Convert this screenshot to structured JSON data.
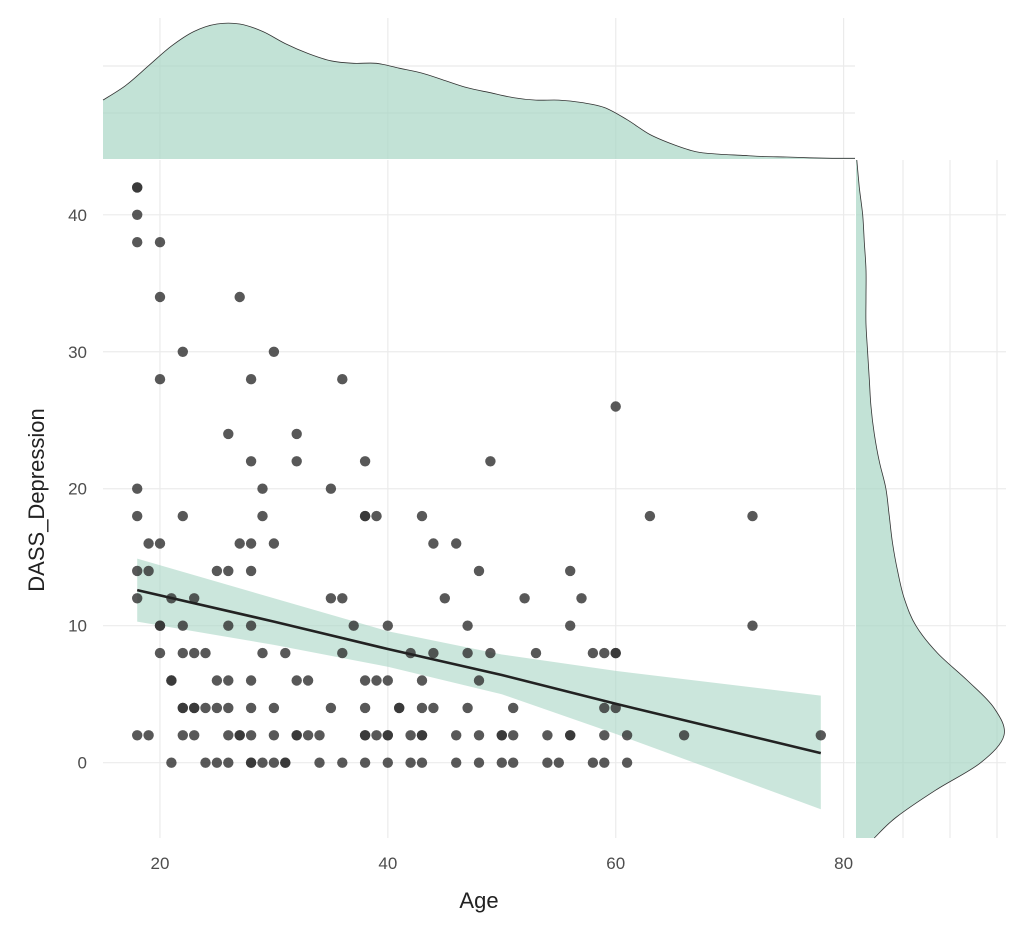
{
  "chart_data": {
    "type": "scatter",
    "xlabel": "Age",
    "ylabel": "DASS_Depression",
    "xlim": [
      15,
      81
    ],
    "ylim": [
      -5.5,
      44
    ],
    "x_ticks": [
      20,
      40,
      60,
      80
    ],
    "y_ticks": [
      0,
      10,
      20,
      30,
      40
    ],
    "grid": true,
    "colors": {
      "points": "#333333",
      "fit_line": "#222222",
      "band": "#a8d5c4",
      "density": "#a8d5c4",
      "density_line": "#333333"
    },
    "points": [
      [
        18,
        42
      ],
      [
        18,
        42
      ],
      [
        18,
        40
      ],
      [
        18,
        38
      ],
      [
        20,
        38
      ],
      [
        20,
        34
      ],
      [
        27,
        34
      ],
      [
        22,
        30
      ],
      [
        30,
        30
      ],
      [
        20,
        28
      ],
      [
        28,
        28
      ],
      [
        36,
        28
      ],
      [
        60,
        26
      ],
      [
        26,
        24
      ],
      [
        32,
        24
      ],
      [
        28,
        22
      ],
      [
        32,
        22
      ],
      [
        38,
        22
      ],
      [
        49,
        22
      ],
      [
        18,
        20
      ],
      [
        29,
        20
      ],
      [
        35,
        20
      ],
      [
        18,
        18
      ],
      [
        22,
        18
      ],
      [
        29,
        18
      ],
      [
        38,
        18
      ],
      [
        38,
        18
      ],
      [
        39,
        18
      ],
      [
        43,
        18
      ],
      [
        63,
        18
      ],
      [
        72,
        18
      ],
      [
        19,
        16
      ],
      [
        20,
        16
      ],
      [
        27,
        16
      ],
      [
        28,
        16
      ],
      [
        30,
        16
      ],
      [
        44,
        16
      ],
      [
        46,
        16
      ],
      [
        18,
        14
      ],
      [
        19,
        14
      ],
      [
        25,
        14
      ],
      [
        26,
        14
      ],
      [
        28,
        14
      ],
      [
        48,
        14
      ],
      [
        56,
        14
      ],
      [
        18,
        12
      ],
      [
        21,
        12
      ],
      [
        23,
        12
      ],
      [
        35,
        12
      ],
      [
        36,
        12
      ],
      [
        45,
        12
      ],
      [
        52,
        12
      ],
      [
        57,
        12
      ],
      [
        20,
        10
      ],
      [
        20,
        10
      ],
      [
        22,
        10
      ],
      [
        26,
        10
      ],
      [
        28,
        10
      ],
      [
        37,
        10
      ],
      [
        40,
        10
      ],
      [
        47,
        10
      ],
      [
        56,
        10
      ],
      [
        72,
        10
      ],
      [
        20,
        8
      ],
      [
        22,
        8
      ],
      [
        23,
        8
      ],
      [
        24,
        8
      ],
      [
        29,
        8
      ],
      [
        31,
        8
      ],
      [
        36,
        8
      ],
      [
        42,
        8
      ],
      [
        44,
        8
      ],
      [
        47,
        8
      ],
      [
        49,
        8
      ],
      [
        53,
        8
      ],
      [
        58,
        8
      ],
      [
        59,
        8
      ],
      [
        60,
        8
      ],
      [
        60,
        8
      ],
      [
        21,
        6
      ],
      [
        21,
        6
      ],
      [
        25,
        6
      ],
      [
        26,
        6
      ],
      [
        28,
        6
      ],
      [
        32,
        6
      ],
      [
        33,
        6
      ],
      [
        38,
        6
      ],
      [
        39,
        6
      ],
      [
        40,
        6
      ],
      [
        43,
        6
      ],
      [
        48,
        6
      ],
      [
        22,
        4
      ],
      [
        22,
        4
      ],
      [
        23,
        4
      ],
      [
        23,
        4
      ],
      [
        24,
        4
      ],
      [
        25,
        4
      ],
      [
        26,
        4
      ],
      [
        28,
        4
      ],
      [
        30,
        4
      ],
      [
        35,
        4
      ],
      [
        38,
        4
      ],
      [
        41,
        4
      ],
      [
        41,
        4
      ],
      [
        43,
        4
      ],
      [
        44,
        4
      ],
      [
        47,
        4
      ],
      [
        51,
        4
      ],
      [
        59,
        4
      ],
      [
        60,
        4
      ],
      [
        18,
        2
      ],
      [
        19,
        2
      ],
      [
        22,
        2
      ],
      [
        23,
        2
      ],
      [
        26,
        2
      ],
      [
        27,
        2
      ],
      [
        27,
        2
      ],
      [
        28,
        2
      ],
      [
        30,
        2
      ],
      [
        32,
        2
      ],
      [
        32,
        2
      ],
      [
        33,
        2
      ],
      [
        34,
        2
      ],
      [
        38,
        2
      ],
      [
        38,
        2
      ],
      [
        39,
        2
      ],
      [
        40,
        2
      ],
      [
        40,
        2
      ],
      [
        42,
        2
      ],
      [
        43,
        2
      ],
      [
        43,
        2
      ],
      [
        46,
        2
      ],
      [
        48,
        2
      ],
      [
        50,
        2
      ],
      [
        50,
        2
      ],
      [
        51,
        2
      ],
      [
        54,
        2
      ],
      [
        56,
        2
      ],
      [
        56,
        2
      ],
      [
        59,
        2
      ],
      [
        61,
        2
      ],
      [
        66,
        2
      ],
      [
        78,
        2
      ],
      [
        21,
        0
      ],
      [
        24,
        0
      ],
      [
        25,
        0
      ],
      [
        26,
        0
      ],
      [
        28,
        0
      ],
      [
        28,
        0
      ],
      [
        29,
        0
      ],
      [
        30,
        0
      ],
      [
        31,
        0
      ],
      [
        31,
        0
      ],
      [
        34,
        0
      ],
      [
        36,
        0
      ],
      [
        38,
        0
      ],
      [
        40,
        0
      ],
      [
        42,
        0
      ],
      [
        43,
        0
      ],
      [
        46,
        0
      ],
      [
        48,
        0
      ],
      [
        50,
        0
      ],
      [
        51,
        0
      ],
      [
        54,
        0
      ],
      [
        55,
        0
      ],
      [
        58,
        0
      ],
      [
        59,
        0
      ],
      [
        61,
        0
      ]
    ],
    "regression": {
      "x": [
        18,
        30,
        40,
        50,
        60,
        78
      ],
      "fit": [
        12.6,
        10.3,
        8.3,
        6.4,
        4.3,
        0.7
      ],
      "lower": [
        10.3,
        8.6,
        7.0,
        5.0,
        2.1,
        -3.4
      ],
      "upper": [
        14.9,
        12.0,
        9.6,
        7.9,
        6.7,
        4.9
      ]
    },
    "x_density": {
      "x": [
        15,
        17,
        19,
        21,
        23,
        25,
        27,
        29,
        31,
        33,
        35,
        37,
        39,
        41,
        43,
        45,
        47,
        49,
        51,
        53,
        55,
        57,
        59,
        61,
        63,
        65,
        67,
        69,
        71,
        73,
        75,
        77,
        79,
        81
      ],
      "density": [
        0.024,
        0.03,
        0.038,
        0.046,
        0.052,
        0.055,
        0.055,
        0.052,
        0.047,
        0.043,
        0.04,
        0.039,
        0.039,
        0.037,
        0.035,
        0.032,
        0.029,
        0.027,
        0.025,
        0.024,
        0.024,
        0.023,
        0.021,
        0.016,
        0.01,
        0.006,
        0.003,
        0.002,
        0.0015,
        0.001,
        0.0008,
        0.0005,
        0.0003,
        0.0003
      ]
    },
    "y_density": {
      "y": [
        44,
        42,
        40,
        38,
        36,
        34,
        32,
        30,
        28,
        26,
        24,
        22,
        20,
        18,
        16,
        14,
        12,
        10,
        8,
        6,
        4,
        2,
        0,
        -2,
        -4,
        -5.5
      ],
      "density": [
        0.0005,
        0.002,
        0.004,
        0.005,
        0.006,
        0.006,
        0.006,
        0.007,
        0.008,
        0.009,
        0.011,
        0.014,
        0.018,
        0.02,
        0.022,
        0.025,
        0.029,
        0.036,
        0.049,
        0.067,
        0.083,
        0.089,
        0.075,
        0.048,
        0.024,
        0.011
      ]
    }
  }
}
